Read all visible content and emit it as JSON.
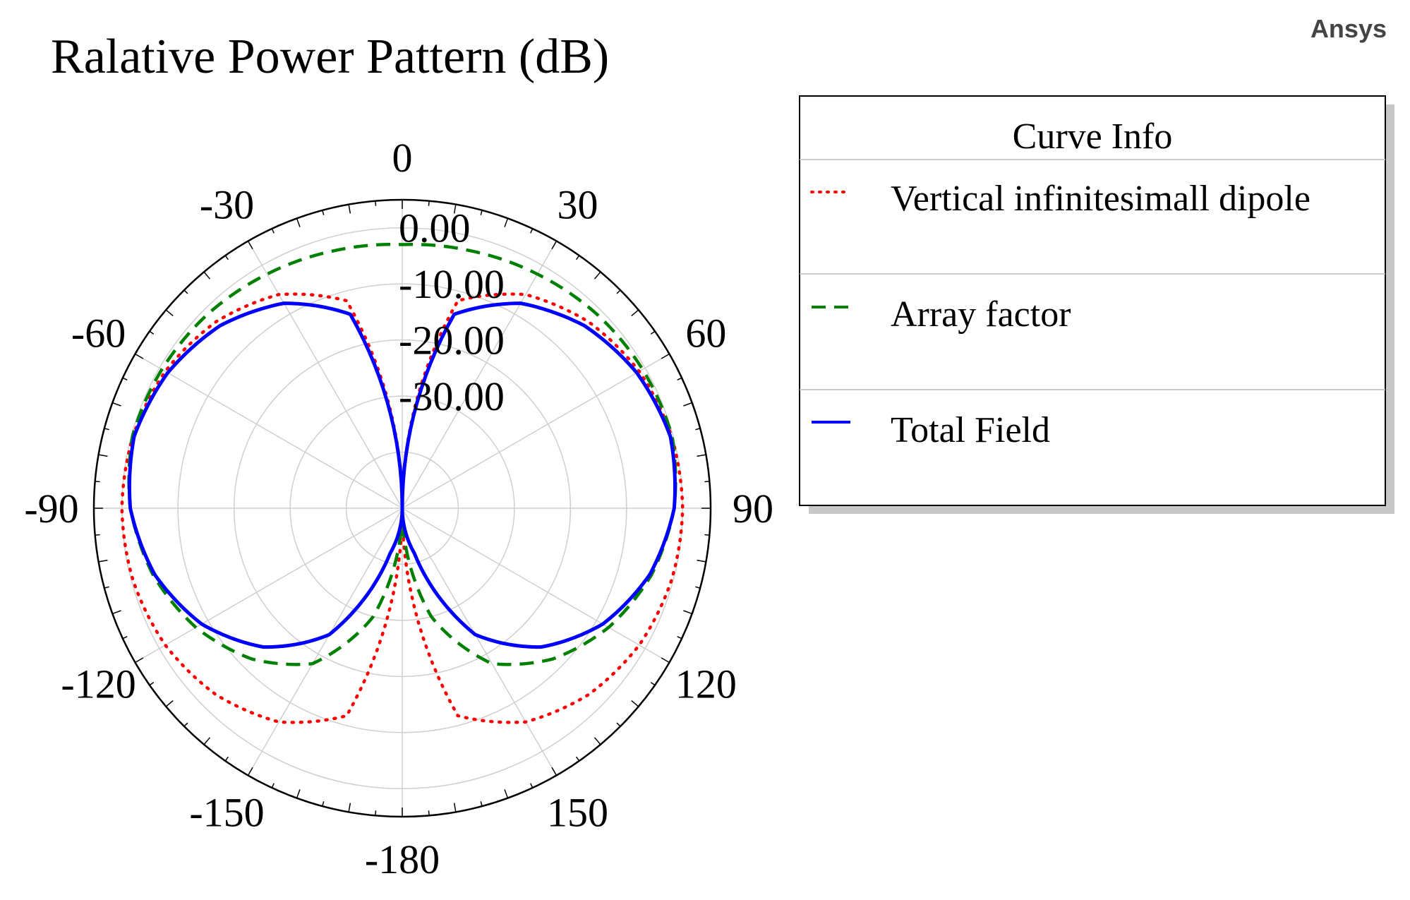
{
  "brand": "Ansys",
  "chart_data": {
    "type": "polar-line",
    "title": "Ralative Power Pattern (dB)",
    "angle_unit": "degrees",
    "angle_zero": "top",
    "angle_direction": "clockwise",
    "angle_ticks": [
      0,
      30,
      60,
      90,
      120,
      150,
      -180,
      -150,
      -120,
      -90,
      -60,
      -30
    ],
    "angle_tick_labels": [
      "0",
      "30",
      "60",
      "90",
      "120",
      "150",
      "-180",
      "-150",
      "-120",
      "-90",
      "-60",
      "-30"
    ],
    "radial_range": [
      -50,
      5
    ],
    "radial_ticks": [
      0,
      -10,
      -20,
      -30
    ],
    "radial_tick_labels": [
      "0.00",
      "-10.00",
      "-20.00",
      "-30.00"
    ],
    "grid": true,
    "legend": {
      "title": "Curve Info",
      "placement": "right",
      "entries": [
        "Vertical infinitesimall dipole",
        "Array factor",
        "Total Field"
      ]
    },
    "series": [
      {
        "name": "Vertical infinitesimall dipole",
        "color": "#ff0000",
        "style": "dotted",
        "theta": [
          0,
          15,
          30,
          45,
          60,
          75,
          90,
          105,
          120,
          135,
          150,
          165,
          180
        ],
        "values_db": [
          -50,
          -11.7,
          -6.0,
          -3.0,
          -1.2,
          -0.3,
          0.0,
          -0.3,
          -1.2,
          -3.0,
          -6.0,
          -11.7,
          -50
        ]
      },
      {
        "name": "Array factor",
        "color": "#008000",
        "style": "dashed",
        "theta": [
          0,
          15,
          30,
          45,
          60,
          75,
          90,
          105,
          120,
          135,
          150,
          165,
          180
        ],
        "values_db": [
          -3.0,
          -2.5,
          -1.8,
          -1.0,
          -0.5,
          -0.2,
          -1.5,
          -4.0,
          -7.5,
          -12.0,
          -18.0,
          -30.0,
          -50
        ]
      },
      {
        "name": "Total Field",
        "color": "#0000ff",
        "style": "solid",
        "theta": [
          0,
          15,
          30,
          45,
          60,
          75,
          90,
          105,
          120,
          135,
          150,
          165,
          180
        ],
        "values_db": [
          -50,
          -14.2,
          -7.8,
          -4.0,
          -1.7,
          -0.5,
          -1.5,
          -4.3,
          -8.7,
          -15.0,
          -24.0,
          -41.7,
          -50
        ]
      }
    ]
  }
}
